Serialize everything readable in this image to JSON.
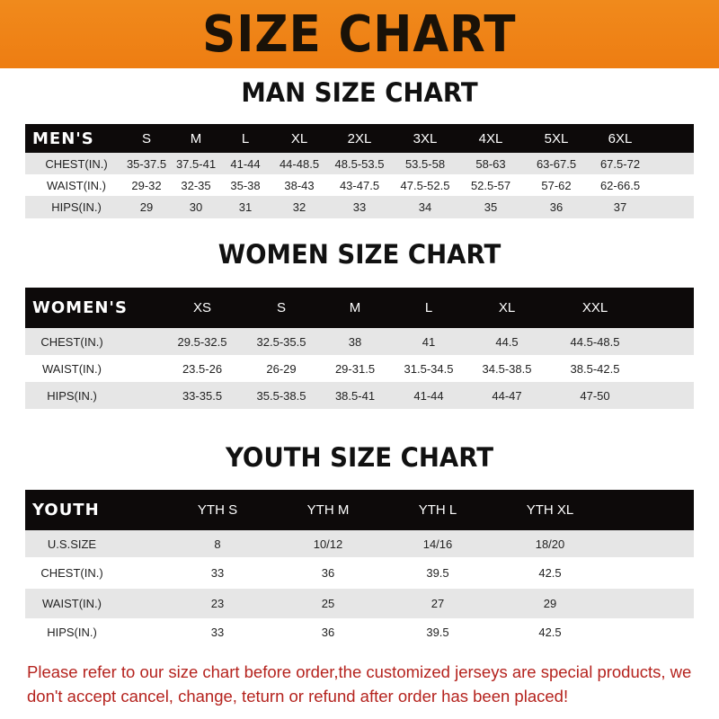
{
  "banner": {
    "title": "SIZE CHART"
  },
  "men": {
    "title": "MAN SIZE CHART",
    "header": [
      "MEN'S",
      "S",
      "M",
      "L",
      "XL",
      "2XL",
      "3XL",
      "4XL",
      "5XL",
      "6XL"
    ],
    "rows": [
      [
        "CHEST(IN.)",
        "35-37.5",
        "37.5-41",
        "41-44",
        "44-48.5",
        "48.5-53.5",
        "53.5-58",
        "58-63",
        "63-67.5",
        "67.5-72"
      ],
      [
        "WAIST(IN.)",
        "29-32",
        "32-35",
        "35-38",
        "38-43",
        "43-47.5",
        "47.5-52.5",
        "52.5-57",
        "57-62",
        "62-66.5"
      ],
      [
        "HIPS(IN.)",
        "29",
        "30",
        "31",
        "32",
        "33",
        "34",
        "35",
        "36",
        "37"
      ]
    ]
  },
  "women": {
    "title": "WOMEN SIZE CHART",
    "header": [
      "WOMEN'S",
      "XS",
      "S",
      "M",
      "L",
      "XL",
      "XXL"
    ],
    "rows": [
      [
        "CHEST(IN.)",
        "29.5-32.5",
        "32.5-35.5",
        "38",
        "41",
        "44.5",
        "44.5-48.5"
      ],
      [
        "WAIST(IN.)",
        "23.5-26",
        "26-29",
        "29-31.5",
        "31.5-34.5",
        "34.5-38.5",
        "38.5-42.5"
      ],
      [
        "HIPS(IN.)",
        "33-35.5",
        "35.5-38.5",
        "38.5-41",
        "41-44",
        "44-47",
        "47-50"
      ]
    ]
  },
  "youth": {
    "title": "YOUTH SIZE CHART",
    "header": [
      "YOUTH",
      "YTH S",
      "YTH M",
      "YTH L",
      "YTH XL"
    ],
    "rows": [
      [
        "U.S.SIZE",
        "8",
        "10/12",
        "14/16",
        "18/20"
      ],
      [
        "CHEST(IN.)",
        "33",
        "36",
        "39.5",
        "42.5"
      ],
      [
        "WAIST(IN.)",
        "23",
        "25",
        "27",
        "29"
      ],
      [
        "HIPS(IN.)",
        "33",
        "36",
        "39.5",
        "42.5"
      ]
    ]
  },
  "note": {
    "text": "Please refer to our size chart before order,the customized jerseys are special products, we don't accept cancel, change, teturn or refund after order has been placed!"
  },
  "colors": {
    "banner": "#ef8318",
    "header": "#0d0a0a",
    "stripe": "#e6e6e6",
    "note": "#b5231e"
  }
}
